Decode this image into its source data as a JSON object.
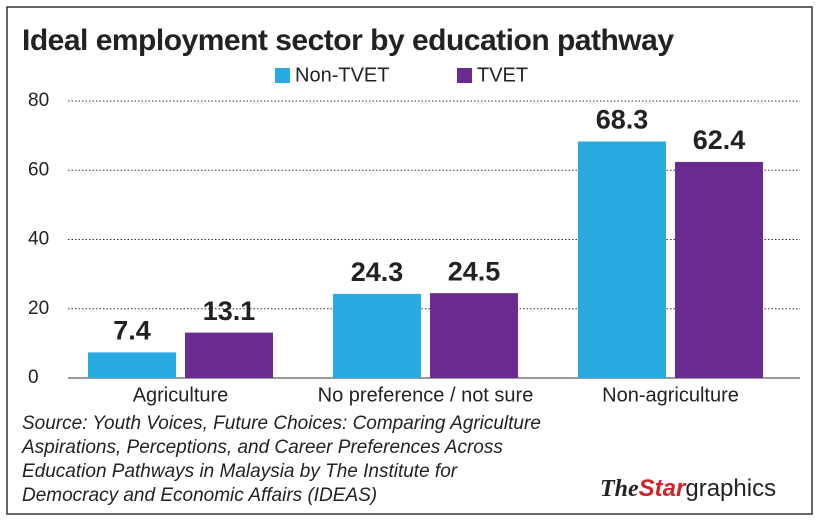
{
  "chart_data": {
    "type": "bar",
    "title": "Ideal employment sector by education pathway",
    "categories": [
      "Agriculture",
      "No preference / not sure",
      "Non-agriculture"
    ],
    "series": [
      {
        "name": "Non-TVET",
        "color": "#29abe2",
        "values": [
          7.4,
          24.3,
          68.3
        ]
      },
      {
        "name": "TVET",
        "color": "#6a2c91",
        "values": [
          13.1,
          24.5,
          62.4
        ]
      }
    ],
    "ylim": [
      0,
      80
    ],
    "yticks": [
      0,
      20,
      40,
      60,
      80
    ],
    "grid": true,
    "legend": "top",
    "source": [
      "Source: Youth Voices, Future Choices: Comparing Agriculture",
      "Aspirations, Perceptions, and Career Preferences Across",
      "Education Pathways in Malaysia by The Institute for",
      "Democracy and Economic Affairs (IDEAS)"
    ],
    "logo": [
      "The",
      "Star",
      "graphics"
    ]
  }
}
